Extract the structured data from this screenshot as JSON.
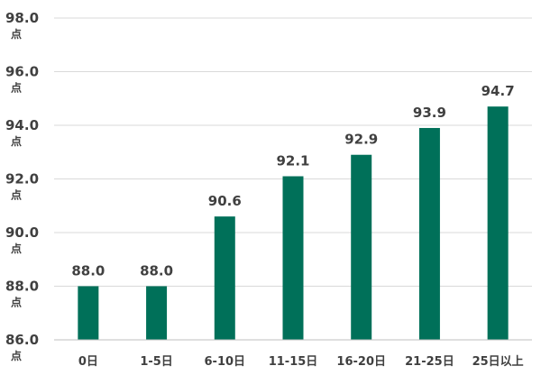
{
  "chart_data": {
    "type": "bar",
    "title": "",
    "xlabel": "",
    "ylabel": "",
    "y_unit": "点",
    "ylim": [
      86.0,
      98.0
    ],
    "y_ticks": [
      "86.0",
      "88.0",
      "90.0",
      "92.0",
      "94.0",
      "96.0",
      "98.0"
    ],
    "categories": [
      "0日",
      "1-5日",
      "6-10日",
      "11-15日",
      "16-20日",
      "21-25日",
      "25日以上"
    ],
    "values": [
      88.0,
      88.0,
      90.6,
      92.1,
      92.9,
      93.9,
      94.7
    ],
    "value_labels": [
      "88.0",
      "88.0",
      "90.6",
      "92.1",
      "92.9",
      "93.9",
      "94.7"
    ],
    "grid": true,
    "legend": "none",
    "bar_color": "#007059"
  }
}
